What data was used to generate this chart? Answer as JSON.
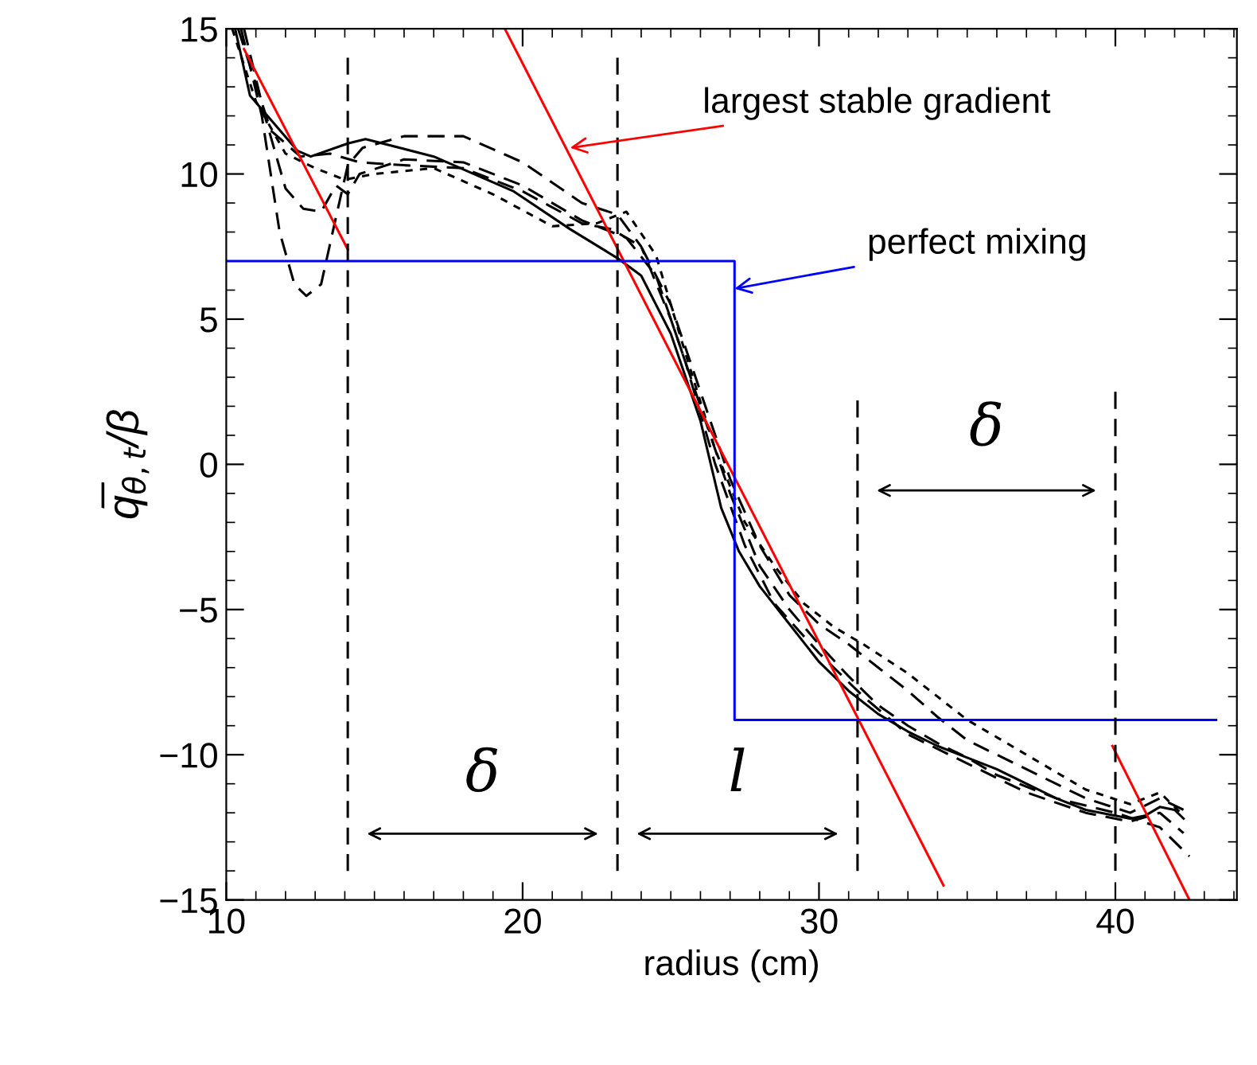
{
  "chart_data": {
    "type": "line",
    "xlabel": "radius (cm)",
    "ylabel": "q̅$_{θ,t}$/β",
    "xlim": [
      10,
      44.1
    ],
    "ylim": [
      -15,
      15
    ],
    "xticks": [
      10,
      20,
      30,
      40
    ],
    "yticks": [
      -15,
      -10,
      -5,
      0,
      5,
      10,
      15
    ],
    "grid": false,
    "legend": false,
    "marker": "none",
    "series": [
      {
        "color": "#000000",
        "line_style": "solid",
        "x": [
          10.3,
          10.8,
          12.4,
          12.85,
          14.1,
          14.7,
          17.0,
          19.7,
          21.6,
          23.2,
          24,
          25,
          26,
          26.7,
          27.3,
          28,
          29,
          30,
          31,
          32,
          33,
          34,
          35,
          36,
          37,
          38,
          39,
          40,
          40.5,
          41,
          41.5,
          42,
          42.3
        ],
        "values": [
          15,
          12.7,
          10.8,
          10.6,
          11.05,
          11.2,
          10.6,
          9.4,
          8.1,
          7.1,
          6.5,
          4.5,
          1.5,
          -1.5,
          -3,
          -4.2,
          -5.5,
          -6.8,
          -7.8,
          -8.6,
          -9.2,
          -9.7,
          -10.1,
          -10.5,
          -11,
          -11.5,
          -11.9,
          -12.1,
          -12.2,
          -12.1,
          -11.8,
          -11.9,
          -12.2
        ]
      },
      {
        "color": "#000000",
        "line_style": "dashed",
        "x": [
          10.5,
          11.2,
          11.8,
          12.3,
          12.7,
          13.2,
          13.7,
          14.1,
          14.6,
          16,
          18,
          20,
          22,
          23.2,
          24,
          25,
          26,
          27,
          28,
          29,
          30,
          31,
          32,
          33,
          34,
          35,
          36,
          38,
          40,
          41.5,
          42.5
        ],
        "values": [
          15,
          12,
          8,
          6.2,
          5.8,
          6.2,
          8.5,
          10.3,
          10.9,
          11.3,
          11.3,
          10.4,
          9,
          8.6,
          7.5,
          5,
          2,
          -1,
          -3.5,
          -5,
          -6.2,
          -7.3,
          -8.3,
          -9,
          -9.6,
          -10.1,
          -10.7,
          -11.5,
          -12,
          -12.5,
          -13.5
        ]
      },
      {
        "color": "#000000",
        "line_style": "dashed",
        "x": [
          10.6,
          11.3,
          12,
          12.6,
          13.2,
          13.7,
          14.1,
          14.5,
          16,
          18,
          20,
          22,
          23.5,
          24.5,
          25.5,
          26.5,
          27.5,
          28.5,
          30,
          31.5,
          33,
          35,
          37,
          39,
          40.5,
          41.5,
          42.3
        ],
        "values": [
          15,
          12,
          9.5,
          8.8,
          8.7,
          9.6,
          9.3,
          10,
          10.5,
          10.4,
          9.6,
          8.4,
          7.8,
          6.5,
          3.5,
          0,
          -2.8,
          -4.8,
          -6.5,
          -8,
          -9.3,
          -10.3,
          -11.3,
          -12,
          -12.3,
          -12,
          -12.7
        ]
      },
      {
        "color": "#000000",
        "line_style": "dashed",
        "x": [
          10.4,
          11.5,
          12.5,
          13.5,
          14.5,
          16,
          18,
          20,
          22,
          23,
          24,
          25,
          26,
          27,
          28,
          29,
          30,
          31,
          32,
          33,
          34,
          35,
          37,
          39,
          40.5,
          41.5,
          42.5
        ],
        "values": [
          15,
          11.5,
          10.6,
          10.7,
          10.4,
          10.3,
          10.2,
          9.4,
          8.3,
          8.1,
          7.5,
          5.5,
          2.5,
          -0.5,
          -2.8,
          -4.5,
          -5.5,
          -6.2,
          -7,
          -7.8,
          -8.7,
          -9.5,
          -10.5,
          -11.5,
          -12,
          -11.5,
          -12
        ]
      },
      {
        "color": "#000000",
        "line_style": "dotted",
        "x": [
          10.2,
          11,
          12,
          13,
          14,
          15,
          17,
          19,
          21,
          22.5,
          23.5,
          24.5,
          25.5,
          26.5,
          27.5,
          28.5,
          29.5,
          30.5,
          31.5,
          33,
          35,
          37,
          39,
          40.5,
          41.5,
          42.3
        ],
        "values": [
          15,
          12.5,
          10.7,
          10.2,
          9.8,
          10,
          10.2,
          9.3,
          8.2,
          8.3,
          8.7,
          7.2,
          3.8,
          0.5,
          -2,
          -3.5,
          -4.8,
          -5.6,
          -6.2,
          -7.2,
          -8.8,
          -10,
          -11.2,
          -11.7,
          -11.3,
          -12.1
        ]
      },
      {
        "color": "#ff0000",
        "line_style": "solid",
        "x": [
          10.6,
          14.1
        ],
        "values": [
          14.3,
          7.4
        ]
      },
      {
        "color": "#ff0000",
        "line_style": "solid",
        "x": [
          19.4,
          34.2
        ],
        "values": [
          15,
          -14.5
        ]
      },
      {
        "color": "#ff0000",
        "line_style": "solid",
        "x": [
          39.9,
          42.5
        ],
        "values": [
          -9.7,
          -15
        ]
      },
      {
        "color": "#0000ff",
        "line_style": "solid",
        "x": [
          10,
          27.15,
          27.15,
          43.4
        ],
        "values": [
          7,
          7,
          -8.8,
          -8.8
        ]
      },
      {
        "color": "#000000",
        "line_style": "dashed",
        "x": [
          14.1,
          14.1
        ],
        "values": [
          14,
          -14
        ]
      },
      {
        "color": "#000000",
        "line_style": "dashed",
        "x": [
          23.2,
          23.2
        ],
        "values": [
          14,
          -14
        ]
      },
      {
        "color": "#000000",
        "line_style": "dashed",
        "x": [
          31.3,
          31.3
        ],
        "values": [
          2.2,
          -14
        ]
      },
      {
        "color": "#000000",
        "line_style": "dashed",
        "x": [
          40,
          40
        ],
        "values": [
          2.5,
          -14
        ]
      }
    ],
    "annotations": [
      {
        "text": "largest stable gradient",
        "x": 21.6,
        "y": 10.9
      },
      {
        "text": "perfect mixing",
        "x": 27.15,
        "y": 6.05
      },
      "δ",
      "l",
      "δ"
    ]
  }
}
